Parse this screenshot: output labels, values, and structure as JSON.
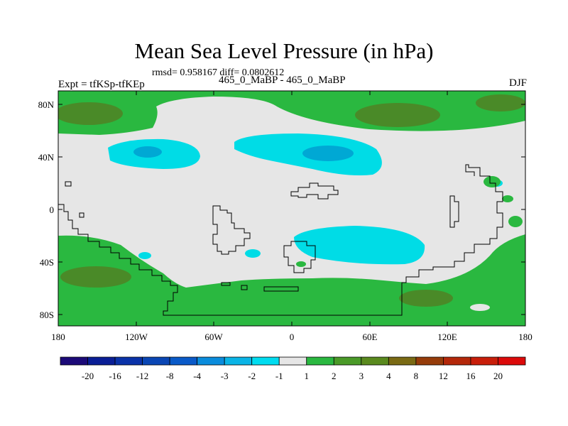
{
  "title": "Mean Sea Level Pressure (in hPa)",
  "stats_line": "rmsd= 0.958167 diff= 0.0802612",
  "expt_label": "Expt = tfKSp-tfKEp",
  "center_label": "465_0_MaBP - 465_0_MaBP",
  "season_label": "DJF",
  "y_ticks": [
    "80N",
    "40N",
    "0",
    "40S",
    "80S"
  ],
  "x_ticks": [
    "180",
    "120W",
    "60W",
    "0",
    "60E",
    "120E",
    "180"
  ],
  "colorbar": {
    "labels": [
      "-20",
      "-16",
      "-12",
      "-8",
      "-4",
      "-3",
      "-2",
      "-1",
      "1",
      "2",
      "3",
      "4",
      "8",
      "12",
      "16",
      "20"
    ],
    "colors": [
      "#1c0a78",
      "#0a1e96",
      "#0a32a8",
      "#0a46b4",
      "#0a5ac8",
      "#0a8cdc",
      "#0ab4e6",
      "#00dcf0",
      "#e6e6e6",
      "#2ab840",
      "#4a9a28",
      "#5a8a1e",
      "#7a6a14",
      "#963c0a",
      "#b4280a",
      "#c81e0a",
      "#dc0a0a"
    ]
  },
  "palette": {
    "positive_1_2": "#2ab840",
    "positive_2_3": "#4a8a28",
    "neutral": "#e6e6e6",
    "negative_1_2": "#00dce6",
    "negative_2_3": "#00a8d4"
  }
}
